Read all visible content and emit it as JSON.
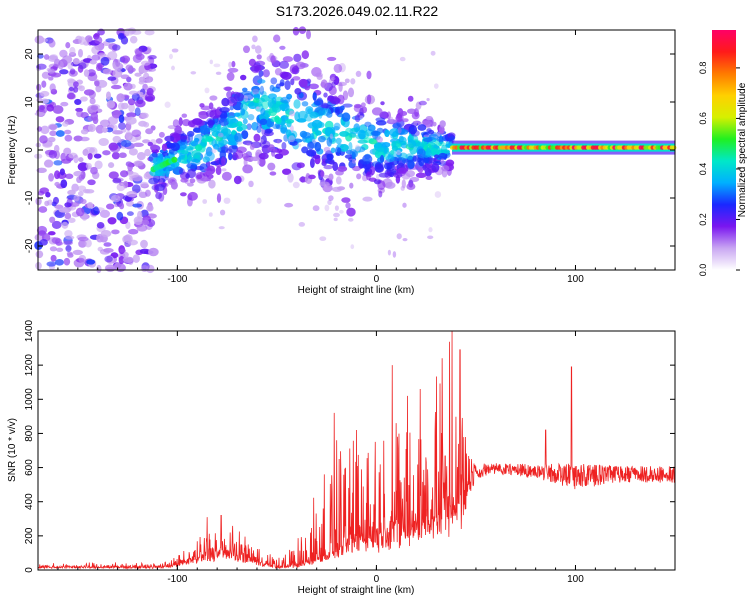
{
  "figure_title": "S173.2026.049.02.11.R22",
  "chart_data": [
    {
      "type": "heatmap",
      "title": "S173.2026.049.02.11.R22",
      "xlabel": "Height of straight line (km)",
      "ylabel": "Frequency (Hz)",
      "xlim": [
        -170,
        150
      ],
      "ylim": [
        -25,
        25
      ],
      "x_ticks": [
        -100,
        0,
        100
      ],
      "y_ticks": [
        -20,
        -10,
        0,
        10,
        20
      ],
      "colorbar": {
        "label": "Normalized spectral amplitude",
        "range": [
          0,
          0.95
        ],
        "ticks": [
          0.0,
          0.2,
          0.4,
          0.6,
          0.8
        ],
        "tick_labels": [
          "0.0",
          "0.2",
          "0.4",
          "0.6",
          "0.8"
        ],
        "colormap": [
          "#ffffff",
          "#c9a6f2",
          "#7a16f0",
          "#1a28ff",
          "#00b0ff",
          "#00e8c8",
          "#20f020",
          "#d6f000",
          "#ffd000",
          "#ff7a00",
          "#ff1a1a",
          "#ff0066"
        ]
      },
      "regions": [
        {
          "name": "broadband noise",
          "x_range": [
            -170,
            -112
          ],
          "freq_range": [
            -25,
            25
          ],
          "amplitude": 0.18
        },
        {
          "name": "onset / scattered signal",
          "x_range": [
            -112,
            38
          ],
          "freq_trend": [
            [
              -112,
              -4
            ],
            [
              -80,
              2
            ],
            [
              -60,
              10
            ],
            [
              -40,
              6
            ],
            [
              0,
              1
            ],
            [
              38,
              0.5
            ]
          ],
          "amplitude": 0.3
        },
        {
          "name": "coherent carrier",
          "x_range": [
            38,
            150
          ],
          "freq": 0.5,
          "amplitude": 0.85
        }
      ]
    },
    {
      "type": "line",
      "title": "",
      "xlabel": "Height of straight line (km)",
      "ylabel": "SNR (10 * v/v)",
      "xlim": [
        -170,
        150
      ],
      "ylim": [
        0,
        1400
      ],
      "x_ticks": [
        -100,
        0,
        100
      ],
      "y_ticks": [
        0,
        200,
        400,
        600,
        800,
        1000,
        1200,
        1400
      ],
      "color": "#ee2222",
      "envelope": {
        "x": [
          -170,
          -110,
          -100,
          -90,
          -80,
          -70,
          -60,
          -50,
          -40,
          -30,
          -20,
          -10,
          0,
          10,
          20,
          30,
          38,
          50,
          60,
          80,
          100,
          120,
          150
        ],
        "baseline": [
          20,
          20,
          40,
          80,
          120,
          110,
          60,
          20,
          30,
          80,
          150,
          220,
          250,
          280,
          330,
          380,
          450,
          580,
          590,
          580,
          550,
          560,
          560
        ],
        "peak": [
          40,
          45,
          90,
          240,
          300,
          250,
          170,
          70,
          200,
          600,
          900,
          1000,
          1020,
          1120,
          1160,
          1200,
          1400,
          700,
          690,
          700,
          780,
          700,
          700
        ]
      },
      "spikes": [
        [
          -85,
          310
        ],
        [
          -78,
          320
        ],
        [
          -20,
          760
        ],
        [
          -10,
          820
        ],
        [
          8,
          1200
        ],
        [
          22,
          1060
        ],
        [
          33,
          1240
        ],
        [
          38,
          1400
        ],
        [
          42,
          1290
        ],
        [
          85,
          820
        ],
        [
          98,
          1190
        ]
      ]
    }
  ]
}
